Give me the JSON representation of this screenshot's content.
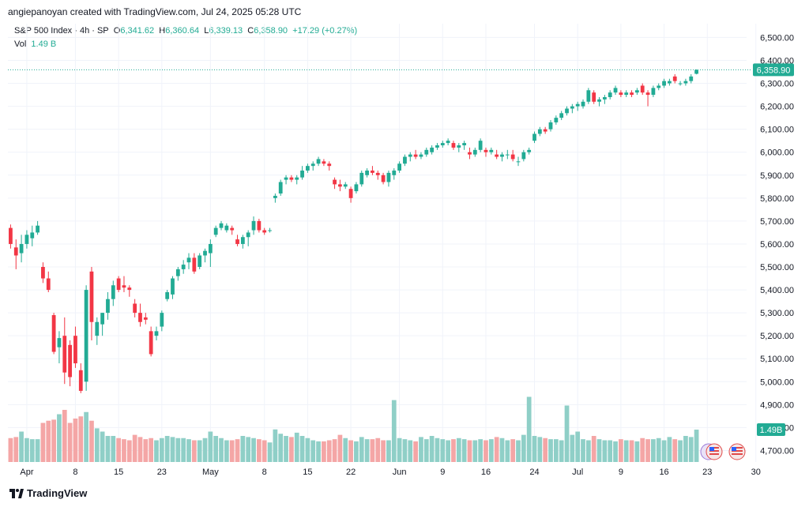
{
  "header": {
    "creator_text": "angiepanoyan created with TradingView.com, Jul 24, 2025 05:28 UTC",
    "symbol": "S&P 500 Index · 4h · SP",
    "open_label": "O",
    "open": "6,341.62",
    "high_label": "H",
    "high": "6,360.64",
    "low_label": "L",
    "low": "6,339.13",
    "close_label": "C",
    "close": "6,358.90",
    "change": "+17.29 (+0.27%)",
    "vol_label": "Vol",
    "vol_value": "1.49 B"
  },
  "footer": {
    "brand": "TradingView"
  },
  "colors": {
    "up": "#22ab94",
    "down": "#f23645",
    "vol_up": "#8fcfc7",
    "vol_down": "#f4a6a6",
    "grid": "#f0f3fa",
    "text": "#131722"
  },
  "chart_data": {
    "type": "candlestick",
    "title": "S&P 500 Index · 4h · SP",
    "interval": "4h",
    "ylim": [
      4650,
      6560
    ],
    "y_ticks": [
      "6,500.00",
      "6,400.00",
      "6,300.00",
      "6,200.00",
      "6,100.00",
      "6,000.00",
      "5,900.00",
      "5,800.00",
      "5,700.00",
      "5,600.00",
      "5,500.00",
      "5,400.00",
      "5,300.00",
      "5,200.00",
      "5,100.00",
      "5,000.00",
      "4,900.00",
      "4,800.00",
      "4,700.00"
    ],
    "y_tick_values": [
      6500,
      6400,
      6300,
      6200,
      6100,
      6000,
      5900,
      5800,
      5700,
      5600,
      5500,
      5400,
      5300,
      5200,
      5100,
      5000,
      4900,
      4800,
      4700
    ],
    "x_tick_labels": [
      "Apr",
      "8",
      "15",
      "23",
      "May",
      "8",
      "15",
      "22",
      "Jun",
      "9",
      "16",
      "24",
      "Jul",
      "9",
      "16",
      "23",
      "30"
    ],
    "x_tick_bars": [
      3,
      12,
      20,
      28,
      37,
      47,
      55,
      63,
      72,
      80,
      88,
      97,
      105,
      113,
      121,
      129,
      138
    ],
    "last_price_label": "6,358.90",
    "last_price": 6358.9,
    "last_volume_label": "1.49B",
    "volume_ylim": [
      0,
      4.0
    ],
    "grid": true,
    "candles": [
      [
        5670,
        5685,
        5580,
        5600
      ],
      [
        5585,
        5620,
        5490,
        5550
      ],
      [
        5560,
        5640,
        5520,
        5600
      ],
      [
        5600,
        5660,
        5580,
        5640
      ],
      [
        5625,
        5680,
        5590,
        5650
      ],
      [
        5650,
        5700,
        5640,
        5680
      ],
      [
        5500,
        5520,
        5430,
        5450
      ],
      [
        5450,
        5480,
        5390,
        5400
      ],
      [
        5290,
        5300,
        5120,
        5130
      ],
      [
        5150,
        5220,
        5080,
        5190
      ],
      [
        5200,
        5280,
        4990,
        5040
      ],
      [
        5160,
        5180,
        4980,
        5020
      ],
      [
        5200,
        5240,
        5060,
        5080
      ],
      [
        5050,
        5080,
        4950,
        4960
      ],
      [
        5000,
        5420,
        4960,
        5400
      ],
      [
        5480,
        5500,
        5180,
        5260
      ],
      [
        5200,
        5280,
        5160,
        5260
      ],
      [
        5250,
        5300,
        5200,
        5300
      ],
      [
        5300,
        5390,
        5270,
        5360
      ],
      [
        5360,
        5440,
        5330,
        5420
      ],
      [
        5450,
        5460,
        5390,
        5400
      ],
      [
        5420,
        5460,
        5390,
        5410
      ],
      [
        5410,
        5420,
        5370,
        5400
      ],
      [
        5340,
        5360,
        5280,
        5300
      ],
      [
        5300,
        5340,
        5240,
        5260
      ],
      [
        5280,
        5300,
        5250,
        5270
      ],
      [
        5220,
        5240,
        5110,
        5120
      ],
      [
        5200,
        5240,
        5180,
        5220
      ],
      [
        5240,
        5310,
        5220,
        5300
      ],
      [
        5360,
        5400,
        5350,
        5390
      ],
      [
        5380,
        5460,
        5360,
        5450
      ],
      [
        5460,
        5500,
        5440,
        5490
      ],
      [
        5490,
        5530,
        5470,
        5510
      ],
      [
        5520,
        5560,
        5490,
        5540
      ],
      [
        5540,
        5560,
        5470,
        5480
      ],
      [
        5500,
        5560,
        5490,
        5550
      ],
      [
        5550,
        5580,
        5520,
        5570
      ],
      [
        5560,
        5620,
        5500,
        5600
      ],
      [
        5640,
        5680,
        5630,
        5670
      ],
      [
        5670,
        5700,
        5660,
        5690
      ],
      [
        5660,
        5690,
        5650,
        5680
      ],
      [
        5670,
        5680,
        5640,
        5660
      ],
      [
        5620,
        5640,
        5590,
        5600
      ],
      [
        5600,
        5640,
        5580,
        5630
      ],
      [
        5630,
        5660,
        5590,
        5650
      ],
      [
        5660,
        5720,
        5640,
        5700
      ],
      [
        5700,
        5710,
        5650,
        5660
      ],
      [
        5660,
        5670,
        5640,
        5650
      ],
      [
        5660,
        5670,
        5650,
        5660
      ],
      [
        5800,
        5820,
        5780,
        5810
      ],
      [
        5820,
        5880,
        5810,
        5870
      ],
      [
        5880,
        5900,
        5860,
        5890
      ],
      [
        5890,
        5900,
        5870,
        5880
      ],
      [
        5880,
        5900,
        5860,
        5890
      ],
      [
        5890,
        5940,
        5880,
        5920
      ],
      [
        5920,
        5950,
        5910,
        5940
      ],
      [
        5940,
        5960,
        5920,
        5950
      ],
      [
        5950,
        5980,
        5940,
        5970
      ],
      [
        5960,
        5970,
        5940,
        5950
      ],
      [
        5950,
        5960,
        5920,
        5940
      ],
      [
        5880,
        5890,
        5840,
        5860
      ],
      [
        5860,
        5880,
        5830,
        5850
      ],
      [
        5850,
        5870,
        5840,
        5860
      ],
      [
        5840,
        5850,
        5780,
        5800
      ],
      [
        5830,
        5870,
        5820,
        5860
      ],
      [
        5860,
        5920,
        5850,
        5910
      ],
      [
        5900,
        5930,
        5890,
        5920
      ],
      [
        5920,
        5940,
        5900,
        5910
      ],
      [
        5910,
        5920,
        5880,
        5900
      ],
      [
        5900,
        5910,
        5860,
        5870
      ],
      [
        5870,
        5920,
        5850,
        5910
      ],
      [
        5900,
        5930,
        5880,
        5920
      ],
      [
        5920,
        5960,
        5910,
        5950
      ],
      [
        5950,
        5990,
        5940,
        5980
      ],
      [
        5980,
        6000,
        5960,
        5990
      ],
      [
        5990,
        6010,
        5970,
        5980
      ],
      [
        5980,
        6000,
        5970,
        5990
      ],
      [
        5990,
        6020,
        5980,
        6010
      ],
      [
        6000,
        6030,
        5990,
        6020
      ],
      [
        6020,
        6040,
        6010,
        6030
      ],
      [
        6030,
        6050,
        6020,
        6040
      ],
      [
        6040,
        6060,
        6030,
        6050
      ],
      [
        6040,
        6050,
        6010,
        6020
      ],
      [
        6020,
        6040,
        6000,
        6030
      ],
      [
        6030,
        6050,
        6010,
        6040
      ],
      [
        6000,
        6020,
        5970,
        5990
      ],
      [
        5990,
        6020,
        5980,
        6010
      ],
      [
        6010,
        6060,
        6000,
        6050
      ],
      [
        6010,
        6020,
        5980,
        6000
      ],
      [
        6000,
        6020,
        5990,
        6010
      ],
      [
        5990,
        6010,
        5970,
        5980
      ],
      [
        5980,
        6000,
        5960,
        5990
      ],
      [
        5990,
        6010,
        5970,
        5990
      ],
      [
        5990,
        6010,
        5960,
        5970
      ],
      [
        5960,
        5980,
        5940,
        5960
      ],
      [
        5970,
        6010,
        5960,
        6000
      ],
      [
        6000,
        6020,
        5990,
        6010
      ],
      [
        6050,
        6090,
        6040,
        6080
      ],
      [
        6080,
        6110,
        6070,
        6100
      ],
      [
        6100,
        6110,
        6080,
        6090
      ],
      [
        6100,
        6140,
        6090,
        6130
      ],
      [
        6130,
        6160,
        6120,
        6150
      ],
      [
        6150,
        6180,
        6140,
        6170
      ],
      [
        6170,
        6200,
        6160,
        6190
      ],
      [
        6190,
        6210,
        6170,
        6200
      ],
      [
        6200,
        6220,
        6180,
        6210
      ],
      [
        6200,
        6230,
        6190,
        6220
      ],
      [
        6220,
        6280,
        6210,
        6270
      ],
      [
        6260,
        6270,
        6210,
        6220
      ],
      [
        6220,
        6240,
        6200,
        6230
      ],
      [
        6230,
        6250,
        6210,
        6240
      ],
      [
        6240,
        6270,
        6230,
        6260
      ],
      [
        6260,
        6290,
        6250,
        6280
      ],
      [
        6260,
        6270,
        6240,
        6250
      ],
      [
        6250,
        6270,
        6240,
        6260
      ],
      [
        6260,
        6270,
        6240,
        6250
      ],
      [
        6260,
        6280,
        6250,
        6270
      ],
      [
        6290,
        6300,
        6250,
        6260
      ],
      [
        6260,
        6270,
        6200,
        6250
      ],
      [
        6250,
        6290,
        6240,
        6280
      ],
      [
        6280,
        6300,
        6270,
        6290
      ],
      [
        6290,
        6320,
        6280,
        6310
      ],
      [
        6300,
        6320,
        6290,
        6310
      ],
      [
        6330,
        6340,
        6300,
        6310
      ],
      [
        6300,
        6310,
        6290,
        6300
      ],
      [
        6300,
        6320,
        6290,
        6310
      ],
      [
        6310,
        6340,
        6300,
        6330
      ],
      [
        6341.62,
        6360.64,
        6339.13,
        6358.9
      ]
    ],
    "volumes": [
      1.1,
      1.15,
      1.4,
      1.1,
      1.05,
      1.05,
      1.8,
      1.9,
      1.95,
      2.2,
      2.4,
      1.8,
      2.0,
      2.1,
      2.3,
      1.9,
      1.55,
      1.4,
      1.2,
      1.2,
      1.1,
      1.05,
      1.0,
      1.25,
      1.15,
      1.05,
      1.1,
      1.0,
      1.1,
      1.2,
      1.15,
      1.1,
      1.1,
      1.05,
      1.0,
      1.0,
      1.1,
      1.4,
      1.2,
      1.1,
      1.0,
      1.0,
      1.05,
      1.2,
      1.15,
      1.1,
      1.05,
      1.0,
      0.9,
      1.5,
      1.3,
      1.2,
      1.15,
      1.35,
      1.2,
      1.1,
      1.0,
      0.95,
      0.95,
      1.0,
      1.05,
      1.25,
      1.1,
      1.0,
      0.95,
      1.15,
      1.05,
      1.05,
      1.1,
      1.0,
      1.0,
      2.85,
      1.1,
      1.05,
      1.0,
      0.95,
      1.15,
      1.05,
      1.2,
      1.1,
      1.05,
      1.0,
      1.05,
      1.1,
      1.05,
      1.0,
      1.0,
      1.05,
      1.0,
      1.05,
      1.15,
      1.1,
      1.0,
      1.05,
      1.0,
      1.25,
      3.0,
      1.2,
      1.15,
      1.1,
      1.05,
      1.05,
      1.0,
      2.6,
      1.25,
      1.4,
      1.05,
      1.0,
      1.2,
      1.05,
      1.0,
      1.0,
      0.95,
      1.05,
      1.0,
      1.0,
      0.95,
      1.1,
      1.05,
      1.05,
      1.1,
      1.0,
      1.15,
      1.05,
      1.0,
      1.2,
      1.15,
      1.49
    ]
  }
}
